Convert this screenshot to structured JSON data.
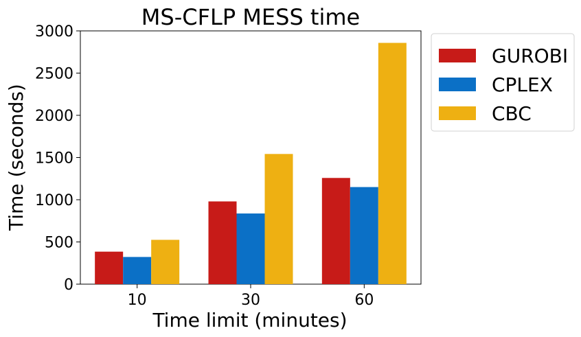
{
  "chart_data": {
    "type": "bar",
    "title": "MS-CFLP MESS time",
    "xlabel": "Time limit (minutes)",
    "ylabel": "Time (seconds)",
    "categories": [
      "10",
      "30",
      "60"
    ],
    "ylim": [
      0,
      3000
    ],
    "yticks": [
      0,
      500,
      1000,
      1500,
      2000,
      2500,
      3000
    ],
    "grid": false,
    "legend_position": "outside-right",
    "series": [
      {
        "name": "GUROBI",
        "color": "#c71b18",
        "values": [
          385,
          980,
          1258
        ]
      },
      {
        "name": "CPLEX",
        "color": "#0b70c6",
        "values": [
          322,
          837,
          1150
        ]
      },
      {
        "name": "CBC",
        "color": "#eeb012",
        "values": [
          525,
          1542,
          2858
        ]
      }
    ]
  }
}
